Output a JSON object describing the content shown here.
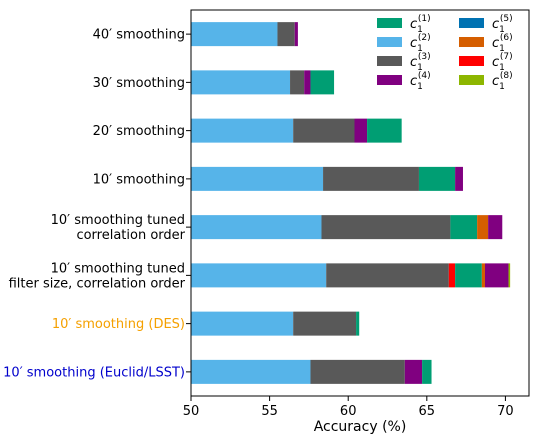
{
  "chart_data": {
    "type": "bar",
    "orientation": "horizontal",
    "stacked": true,
    "xlabel": "Accuracy (%)",
    "xlim": [
      50,
      71.5
    ],
    "xticks": [
      "50",
      "55",
      "60",
      "65",
      "70"
    ],
    "xtick_values": [
      50,
      55,
      60,
      65,
      70
    ],
    "grid": false,
    "legend_position": "top-right",
    "categories": [
      {
        "label_lines": [
          "40′ smoothing"
        ],
        "color": "#000000"
      },
      {
        "label_lines": [
          "30′ smoothing"
        ],
        "color": "#000000"
      },
      {
        "label_lines": [
          "20′ smoothing"
        ],
        "color": "#000000"
      },
      {
        "label_lines": [
          "10′ smoothing"
        ],
        "color": "#000000"
      },
      {
        "label_lines": [
          "10′  smoothing tuned",
          "correlation order"
        ],
        "color": "#000000"
      },
      {
        "label_lines": [
          "10′  smoothing tuned",
          "filter size, correlation order"
        ],
        "color": "#000000"
      },
      {
        "label_lines": [
          "10′ smoothing (DES)"
        ],
        "color": "#f5a000"
      },
      {
        "label_lines": [
          "10′ smoothing (Euclid/LSST)"
        ],
        "color": "#0000cc"
      }
    ],
    "series": [
      {
        "name": "c1(1)",
        "sup": "(1)",
        "color": "#009e73"
      },
      {
        "name": "c1(2)",
        "sup": "(2)",
        "color": "#56b4e9"
      },
      {
        "name": "c1(3)",
        "sup": "(3)",
        "color": "#595959"
      },
      {
        "name": "c1(4)",
        "sup": "(4)",
        "color": "#800080"
      },
      {
        "name": "c1(5)",
        "sup": "(5)",
        "color": "#0072b2"
      },
      {
        "name": "c1(6)",
        "sup": "(6)",
        "color": "#d55e00"
      },
      {
        "name": "c1(7)",
        "sup": "(7)",
        "color": "#ff0000"
      },
      {
        "name": "c1(8)",
        "sup": "(8)",
        "color": "#8db600"
      }
    ],
    "segments": [
      [
        {
          "series": 1,
          "start": 50,
          "end": 55.5
        },
        {
          "series": 2,
          "start": 55.5,
          "end": 56.6
        },
        {
          "series": 3,
          "start": 56.6,
          "end": 56.8
        }
      ],
      [
        {
          "series": 1,
          "start": 50,
          "end": 56.3
        },
        {
          "series": 2,
          "start": 56.3,
          "end": 57.2
        },
        {
          "series": 3,
          "start": 57.2,
          "end": 57.6
        },
        {
          "series": 0,
          "start": 57.6,
          "end": 59.1
        }
      ],
      [
        {
          "series": 1,
          "start": 50,
          "end": 56.5
        },
        {
          "series": 2,
          "start": 56.5,
          "end": 60.4
        },
        {
          "series": 3,
          "start": 60.4,
          "end": 61.2
        },
        {
          "series": 0,
          "start": 61.2,
          "end": 63.4
        }
      ],
      [
        {
          "series": 1,
          "start": 50,
          "end": 58.4
        },
        {
          "series": 2,
          "start": 58.4,
          "end": 64.5
        },
        {
          "series": 0,
          "start": 64.5,
          "end": 66.8
        },
        {
          "series": 3,
          "start": 66.8,
          "end": 67.3
        }
      ],
      [
        {
          "series": 1,
          "start": 50,
          "end": 58.3
        },
        {
          "series": 2,
          "start": 58.3,
          "end": 66.5
        },
        {
          "series": 0,
          "start": 66.5,
          "end": 68.2
        },
        {
          "series": 5,
          "start": 68.2,
          "end": 68.9
        },
        {
          "series": 3,
          "start": 68.9,
          "end": 69.8
        }
      ],
      [
        {
          "series": 1,
          "start": 50,
          "end": 58.6
        },
        {
          "series": 2,
          "start": 58.6,
          "end": 66.4
        },
        {
          "series": 6,
          "start": 66.4,
          "end": 66.8
        },
        {
          "series": 0,
          "start": 66.8,
          "end": 68.5
        },
        {
          "series": 5,
          "start": 68.5,
          "end": 68.7
        },
        {
          "series": 3,
          "start": 68.7,
          "end": 70.2
        },
        {
          "series": 7,
          "start": 70.2,
          "end": 70.3
        }
      ],
      [
        {
          "series": 1,
          "start": 50,
          "end": 56.5
        },
        {
          "series": 2,
          "start": 56.5,
          "end": 60.5
        },
        {
          "series": 0,
          "start": 60.5,
          "end": 60.7
        }
      ],
      [
        {
          "series": 1,
          "start": 50,
          "end": 57.6
        },
        {
          "series": 2,
          "start": 57.6,
          "end": 63.6
        },
        {
          "series": 3,
          "start": 63.6,
          "end": 64.7
        },
        {
          "series": 0,
          "start": 64.7,
          "end": 65.3
        }
      ]
    ]
  }
}
